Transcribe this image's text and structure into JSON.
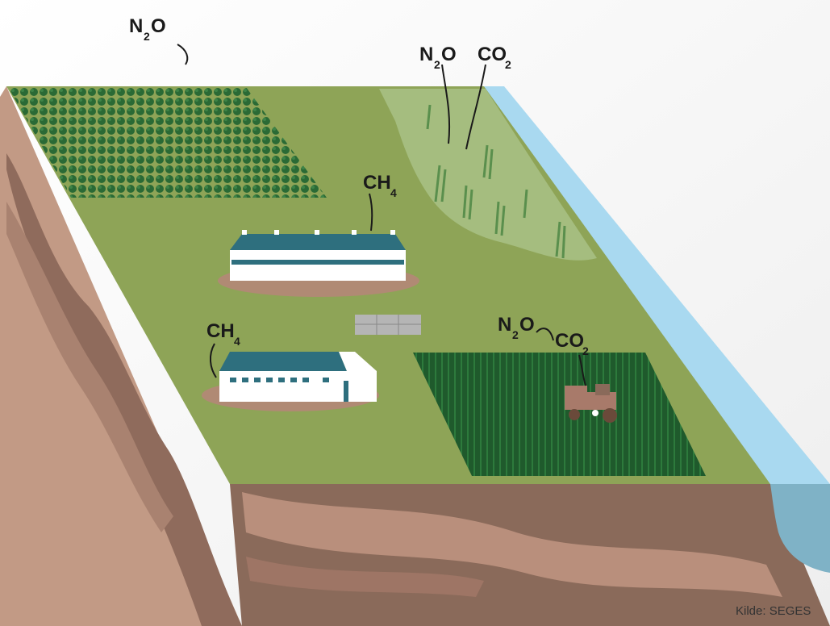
{
  "labels": {
    "top_left_n2o": {
      "main": "N",
      "sub": "2",
      "tail": "O"
    },
    "wetland_n2o": {
      "main": "N",
      "sub": "2",
      "tail": "O"
    },
    "wetland_co2": {
      "main": "CO",
      "sub": "2"
    },
    "barn_ch4": {
      "main": "CH",
      "sub": "4"
    },
    "shed_ch4": {
      "main": "CH",
      "sub": "4"
    },
    "field_n2o": {
      "main": "N",
      "sub": "2",
      "tail": "O"
    },
    "field_co2": {
      "main": "CO",
      "sub": "2"
    }
  },
  "source": "Kilde: SEGES",
  "colors": {
    "grass": "#8ea457",
    "wetland": "#a5bd7f",
    "water": "#a9d9f0",
    "soil_front": "#8a6a5a",
    "soil_side": "#c29a85",
    "crop_dark": "#1f5a2c",
    "trees": "#2a6a35",
    "roof": "#2e6f7e",
    "barn_wall": "#ffffff",
    "manure": "#b08a74"
  }
}
